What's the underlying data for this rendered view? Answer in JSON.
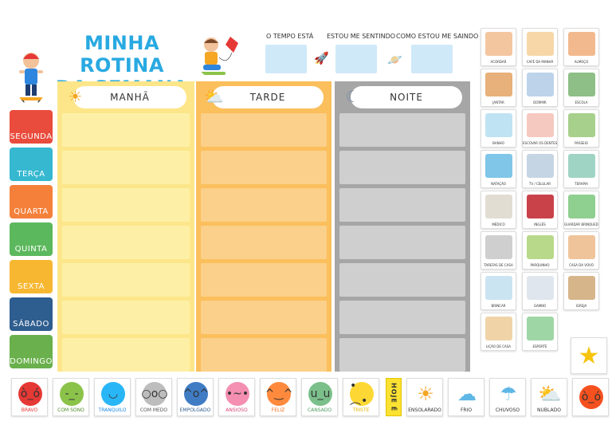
{
  "title": {
    "line1": "MINHA ROTINA",
    "line2": "DA SEMANA"
  },
  "header": {
    "weather_label": "O TEMPO ESTÁ",
    "feeling_label": "ESTOU ME SENTINDO",
    "leaving_label": "COMO ESTOU ME SAINDO"
  },
  "days": [
    {
      "label": "SEGUNDA",
      "color": "#e94b3c"
    },
    {
      "label": "TERÇA",
      "color": "#35b8d0"
    },
    {
      "label": "QUARTA",
      "color": "#f4803a"
    },
    {
      "label": "QUINTA",
      "color": "#5cb85c"
    },
    {
      "label": "SEXTA",
      "color": "#f7b731"
    },
    {
      "label": "SÁBADO",
      "color": "#2e5d8f"
    },
    {
      "label": "DOMINGO",
      "color": "#6ab04c"
    }
  ],
  "periods": [
    {
      "label": "MANHÃ",
      "icon": "sun-icon",
      "color": "#fde68a",
      "cell": "#fdf0a6"
    },
    {
      "label": "TARDE",
      "icon": "sun-cloud-icon",
      "color": "#fbbf5c",
      "cell": "#fbd08a"
    },
    {
      "label": "NOITE",
      "icon": "moon-icon",
      "color": "#a6a6a6",
      "cell": "#cfcfcf"
    }
  ],
  "activities": [
    {
      "label": "ACORDAR",
      "color": "#f4c6a0"
    },
    {
      "label": "CAFÉ DA MANHÃ",
      "color": "#f7d7a8"
    },
    {
      "label": "ALMOÇO",
      "color": "#f2b98e"
    },
    {
      "label": "JANTAR",
      "color": "#e8b07a"
    },
    {
      "label": "DORMIR",
      "color": "#bcd3ea"
    },
    {
      "label": "ESCOLA",
      "color": "#8dbf86"
    },
    {
      "label": "BANHO",
      "color": "#bfe3f2"
    },
    {
      "label": "ESCOVAR OS DENTES",
      "color": "#f5c9c0"
    },
    {
      "label": "PASSEIO",
      "color": "#a7d08c"
    },
    {
      "label": "NATAÇÃO",
      "color": "#7fc6e8"
    },
    {
      "label": "TV / CELULAR",
      "color": "#c6d5e4"
    },
    {
      "label": "TERAPIA",
      "color": "#9fd4c4"
    },
    {
      "label": "MÉDICO",
      "color": "#e2ddd3"
    },
    {
      "label": "INGLÊS",
      "color": "#c9424a"
    },
    {
      "label": "GUARDAR BRINQUEDOS",
      "color": "#8fcf8f"
    },
    {
      "label": "TAREFAS DE CASA",
      "color": "#d0cfcf"
    },
    {
      "label": "PARQUINHO",
      "color": "#b8d98a"
    },
    {
      "label": "CASA DA VOVÓ",
      "color": "#f0c49a"
    },
    {
      "label": "BRINCAR",
      "color": "#cbe4f2"
    },
    {
      "label": "GAMBO",
      "color": "#dfe6ee"
    },
    {
      "label": "IGREJA",
      "color": "#d7b58a"
    },
    {
      "label": "LIÇÃO DE CASA",
      "color": "#f0d4a8"
    },
    {
      "label": "ESPORTE",
      "color": "#9fd6a6"
    }
  ],
  "emotions": [
    {
      "label": "BRAVO",
      "color": "#e53935",
      "text_color": "#e53935",
      "face": "ò_ó"
    },
    {
      "label": "COM SONO",
      "color": "#8bc34a",
      "text_color": "#4e8a2a",
      "face": "-_-"
    },
    {
      "label": "TRANQUILO",
      "color": "#29b6f6",
      "text_color": "#1e88e5",
      "face": "◡"
    },
    {
      "label": "COM MEDO",
      "color": "#bdbdbd",
      "text_color": "#555555",
      "face": "○o○"
    },
    {
      "label": "EMPOLGADO",
      "color": "#3f7cc4",
      "text_color": "#2e5d8f",
      "face": "^o^"
    },
    {
      "label": "ANSIOSO",
      "color": "#f48fb1",
      "text_color": "#d6457a",
      "face": "•~•"
    },
    {
      "label": "FELIZ",
      "color": "#ff8a3d",
      "text_color": "#f06a1a",
      "face": "^‿^"
    },
    {
      "label": "CANSADO",
      "color": "#7bbf8a",
      "text_color": "#4e9a5e",
      "face": "u_u"
    },
    {
      "label": "TRISTE",
      "color": "#fdd835",
      "text_color": "#e0b400",
      "face": "•︵•"
    }
  ],
  "hoje_label": "HOJE É",
  "weather": [
    {
      "label": "ENSOLARADO",
      "icon": "sun-icon",
      "glyph": "☀",
      "color": "#f5a623"
    },
    {
      "label": "FRIO",
      "icon": "snow-cloud-icon",
      "glyph": "☁",
      "color": "#5fb7e6"
    },
    {
      "label": "CHUVOSO",
      "icon": "rain-cloud-icon",
      "glyph": "☂",
      "color": "#5fb7e6"
    },
    {
      "label": "NUBLADO",
      "icon": "sun-cloud-icon",
      "glyph": "⛅",
      "color": "#f5a623"
    }
  ]
}
